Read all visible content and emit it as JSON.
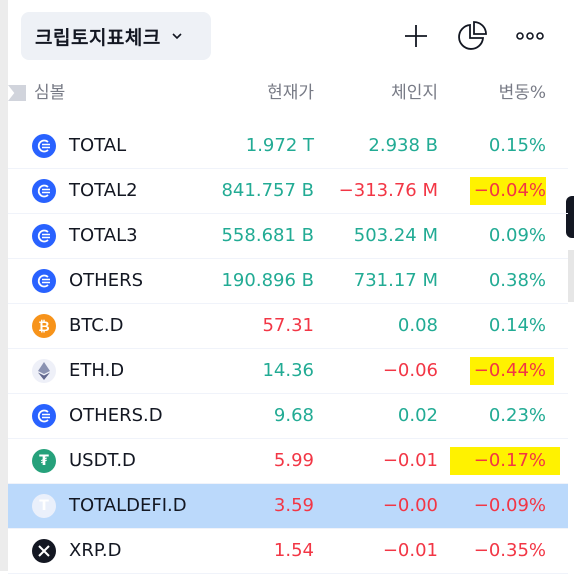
{
  "header": {
    "title": "크립토지표체크",
    "icons": [
      "chevron-down-icon",
      "plus-icon",
      "pie-chart-icon",
      "more-icon"
    ]
  },
  "columns": {
    "symbol": "심볼",
    "last": "현재가",
    "change": "체인지",
    "change_pct": "변동%"
  },
  "rows": [
    {
      "symbol": "TOTAL",
      "last": "1.972 T",
      "change": "2.938 B",
      "change_pct": "0.15%",
      "icon": "crypto-cap-icon",
      "last_color": "green",
      "change_color": "green",
      "pct_color": "green"
    },
    {
      "symbol": "TOTAL2",
      "last": "841.757 B",
      "change": "−313.76 M",
      "change_pct": "−0.04%",
      "icon": "crypto-cap-icon",
      "last_color": "green",
      "change_color": "red",
      "pct_color": "red"
    },
    {
      "symbol": "TOTAL3",
      "last": "558.681 B",
      "change": "503.24 M",
      "change_pct": "0.09%",
      "icon": "crypto-cap-icon",
      "last_color": "green",
      "change_color": "green",
      "pct_color": "green"
    },
    {
      "symbol": "OTHERS",
      "last": "190.896 B",
      "change": "731.17 M",
      "change_pct": "0.38%",
      "icon": "crypto-cap-icon",
      "last_color": "green",
      "change_color": "green",
      "pct_color": "green"
    },
    {
      "symbol": "BTC.D",
      "last": "57.31",
      "change": "0.08",
      "change_pct": "0.14%",
      "icon": "bitcoin-icon",
      "last_color": "red",
      "change_color": "green",
      "pct_color": "green"
    },
    {
      "symbol": "ETH.D",
      "last": "14.36",
      "change": "−0.06",
      "change_pct": "−0.44%",
      "icon": "ethereum-icon",
      "last_color": "green",
      "change_color": "red",
      "pct_color": "red"
    },
    {
      "symbol": "OTHERS.D",
      "last": "9.68",
      "change": "0.02",
      "change_pct": "0.23%",
      "icon": "crypto-cap-icon",
      "last_color": "green",
      "change_color": "green",
      "pct_color": "green"
    },
    {
      "symbol": "USDT.D",
      "last": "5.99",
      "change": "−0.01",
      "change_pct": "−0.17%",
      "icon": "tether-icon",
      "last_color": "red",
      "change_color": "red",
      "pct_color": "red"
    },
    {
      "symbol": "TOTALDEFI.D",
      "last": "3.59",
      "change": "−0.00",
      "change_pct": "−0.09%",
      "icon": "defi-icon",
      "last_color": "red",
      "change_color": "red",
      "pct_color": "red"
    },
    {
      "symbol": "XRP.D",
      "last": "1.54",
      "change": "−0.01",
      "change_pct": "−0.35%",
      "icon": "xrp-icon",
      "last_color": "red",
      "change_color": "red",
      "pct_color": "red"
    }
  ],
  "selected_row": "TOTALDEFI.D",
  "highlighted_rows": [
    "TOTAL2",
    "ETH.D",
    "USDT.D"
  ],
  "colors": {
    "green": "#22ab94",
    "red": "#f23645",
    "selected": "#bbd9fb",
    "highlight": "#fff200",
    "crypto_cap": "#2962ff",
    "bitcoin": "#f7931a",
    "tether": "#26a17b"
  }
}
